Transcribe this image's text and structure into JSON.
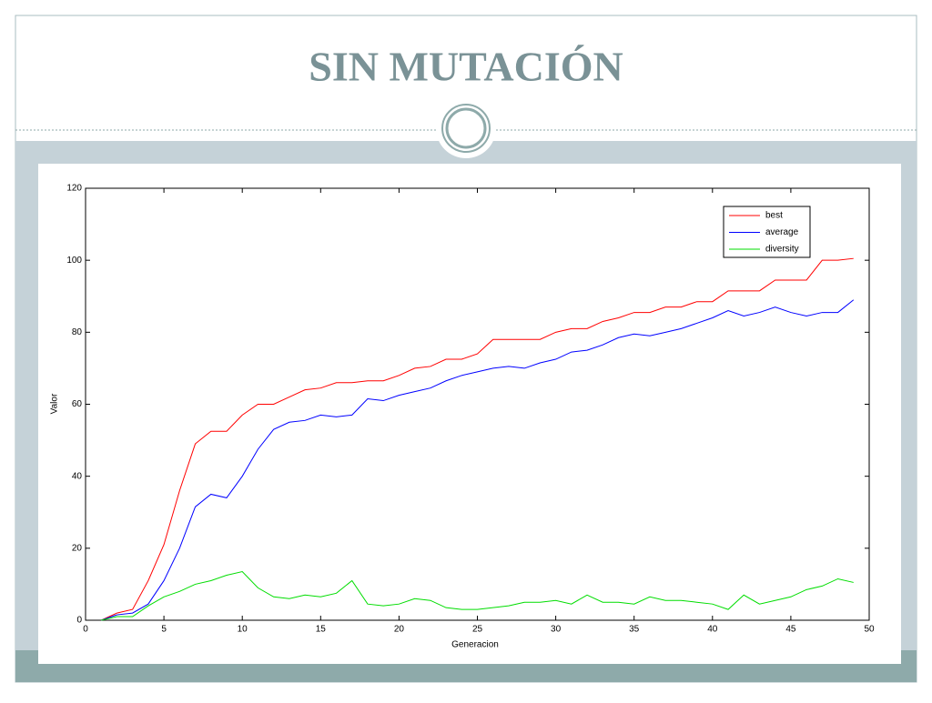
{
  "slide": {
    "title": "SIN MUTACIÓN"
  },
  "chart_data": {
    "type": "line",
    "xlabel": "Generacion",
    "ylabel": "Valor",
    "x": [
      1,
      2,
      3,
      4,
      5,
      6,
      7,
      8,
      9,
      10,
      11,
      12,
      13,
      14,
      15,
      16,
      17,
      18,
      19,
      20,
      21,
      22,
      23,
      24,
      25,
      26,
      27,
      28,
      29,
      30,
      31,
      32,
      33,
      34,
      35,
      36,
      37,
      38,
      39,
      40,
      41,
      42,
      43,
      44,
      45,
      46,
      47,
      48,
      49
    ],
    "series": [
      {
        "name": "best",
        "color": "#ff0000",
        "values": [
          0,
          2,
          3,
          11,
          21,
          36,
          49,
          52.5,
          52.5,
          57,
          60,
          60,
          62,
          64,
          64.5,
          66,
          66,
          66.5,
          66.5,
          68,
          70,
          70.5,
          72.5,
          72.5,
          74,
          78,
          78,
          78,
          78,
          80,
          81,
          81,
          83,
          84,
          85.5,
          85.5,
          87,
          87,
          88.5,
          88.5,
          91.5,
          91.5,
          91.5,
          94.5,
          94.5,
          94.5,
          100,
          100,
          100.5
        ]
      },
      {
        "name": "average",
        "color": "#0000ff",
        "values": [
          0,
          1.5,
          2,
          4.5,
          11,
          20,
          31.5,
          35,
          34,
          40,
          47.5,
          53,
          55,
          55.5,
          57,
          56.5,
          57,
          61.5,
          61,
          62.5,
          63.5,
          64.5,
          66.5,
          68,
          69,
          70,
          70.5,
          70,
          71.5,
          72.5,
          74.5,
          75,
          76.5,
          78.5,
          79.5,
          79,
          80,
          81,
          82.5,
          84,
          86,
          84.5,
          85.5,
          87,
          85.5,
          84.5,
          85.5,
          85.5,
          89
        ]
      },
      {
        "name": "diversity",
        "color": "#00dd00",
        "values": [
          0,
          1,
          1,
          4,
          6.5,
          8,
          10,
          11,
          12.5,
          13.5,
          9,
          6.5,
          6,
          7,
          6.5,
          7.5,
          11,
          4.5,
          4,
          4.5,
          6,
          5.5,
          3.5,
          3,
          3,
          3.5,
          4,
          5,
          5,
          5.5,
          4.5,
          7,
          5,
          5,
          4.5,
          6.5,
          5.5,
          5.5,
          5,
          4.5,
          3,
          7,
          4.5,
          5.5,
          6.5,
          8.5,
          9.5,
          11.5,
          10.5
        ]
      }
    ],
    "xlim": [
      0,
      50
    ],
    "xticks": [
      0,
      5,
      10,
      15,
      20,
      25,
      30,
      35,
      40,
      45,
      50
    ],
    "ylim": [
      0,
      120
    ],
    "yticks": [
      0,
      20,
      40,
      60,
      80,
      100,
      120
    ],
    "legend": "upper-right"
  }
}
